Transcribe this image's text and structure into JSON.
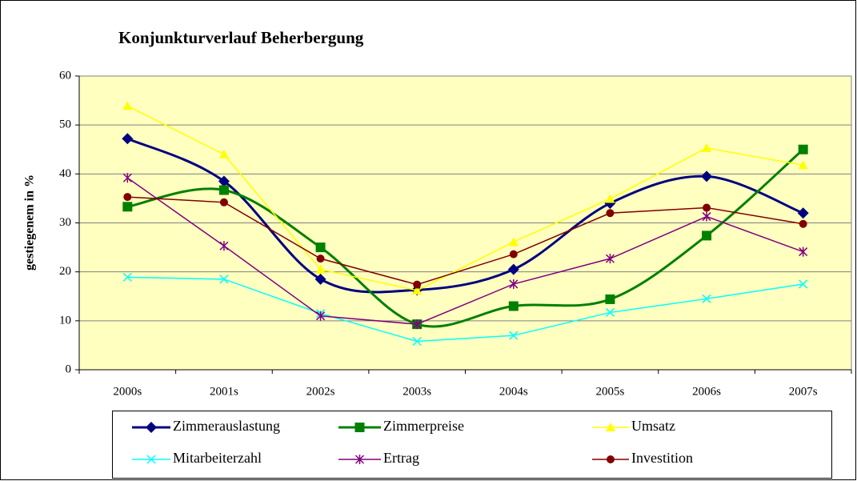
{
  "chart_data": {
    "type": "line",
    "title": "Konjunkturverlauf Beherbergung",
    "y_label": "gestiegenem in %",
    "categories": [
      "2000s",
      "2001s",
      "2002s",
      "2003s",
      "2004s",
      "2005s",
      "2006s",
      "2007s"
    ],
    "ylim": [
      0,
      60
    ],
    "yticks": [
      0,
      10,
      20,
      30,
      40,
      50,
      60
    ],
    "grid": true,
    "legend": "bottom",
    "series": [
      {
        "name": "Zimmerauslastung",
        "color": "#000080",
        "marker": "diamond",
        "smooth": true,
        "values": [
          47.2,
          38.5,
          18.5,
          16.3,
          20.5,
          34,
          39.5,
          32
        ]
      },
      {
        "name": "Zimmerpreise",
        "color": "#008000",
        "marker": "square",
        "smooth": true,
        "values": [
          33.3,
          36.7,
          25,
          9.3,
          13,
          14.4,
          27.4,
          45
        ]
      },
      {
        "name": "Umsatz",
        "color": "#ffff00",
        "marker": "triangle",
        "smooth": false,
        "values": [
          53.9,
          44,
          20.5,
          16.2,
          26.1,
          34.9,
          45.3,
          41.8
        ]
      },
      {
        "name": "Mitarbeiterzahl",
        "color": "#00ffff",
        "marker": "x",
        "smooth": false,
        "values": [
          18.9,
          18.5,
          11.5,
          5.8,
          7,
          11.7,
          14.5,
          17.5
        ]
      },
      {
        "name": "Ertrag",
        "color": "#800080",
        "marker": "star",
        "smooth": false,
        "values": [
          39.2,
          25.3,
          11,
          9.3,
          17.5,
          22.7,
          31.3,
          24.1
        ]
      },
      {
        "name": "Investition",
        "color": "#800000",
        "marker": "circle",
        "smooth": false,
        "values": [
          35.3,
          34.2,
          22.7,
          17.4,
          23.6,
          32,
          33.1,
          29.8
        ]
      }
    ]
  }
}
